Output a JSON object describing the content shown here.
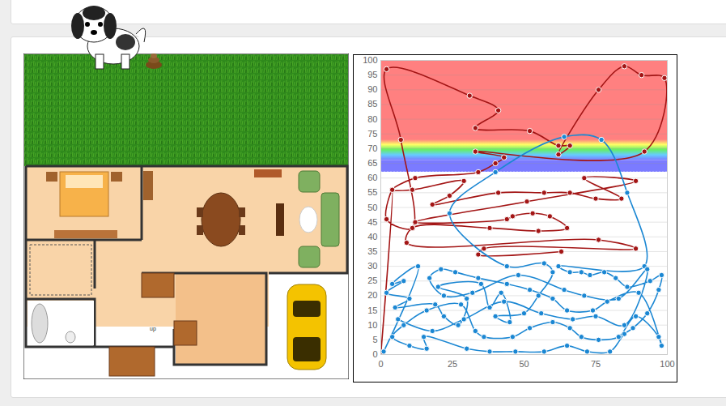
{
  "chart_data": {
    "type": "line",
    "marker": "circle",
    "grid": true,
    "xlim": [
      0,
      100
    ],
    "xticks": [
      0,
      25,
      50,
      75,
      100
    ],
    "ylim": [
      0,
      100
    ],
    "yticks": [
      0,
      5,
      10,
      15,
      20,
      25,
      30,
      35,
      40,
      45,
      50,
      55,
      60,
      65,
      70,
      75,
      80,
      85,
      90,
      95,
      100
    ],
    "bands": [
      {
        "from": 73,
        "to": 100,
        "color": "#ff8080"
      },
      {
        "from": 66,
        "to": 73,
        "colors": [
          "#ff8080",
          "#ffff66",
          "#66ee66",
          "#66ccff",
          "#7b7bff"
        ]
      },
      {
        "from": 62,
        "to": 66,
        "color": "#7b7bff"
      }
    ],
    "series": [
      {
        "color": "#a31515",
        "x": [
          0,
          4,
          2,
          11,
          7,
          2,
          31,
          41,
          33,
          52,
          62,
          66,
          62,
          76,
          85,
          91,
          99,
          92,
          33,
          43,
          40,
          34,
          12,
          4,
          11,
          29,
          24,
          18,
          41,
          57,
          66,
          75,
          84,
          71,
          89,
          51,
          12,
          44,
          46,
          53,
          59,
          65,
          55,
          38,
          11,
          9,
          76,
          89,
          36,
          34,
          63
        ],
        "values": [
          0,
          56,
          46,
          43,
          73,
          97,
          88,
          83,
          77,
          76,
          71,
          71,
          68,
          90,
          98,
          95,
          94,
          69,
          69,
          67,
          65,
          62,
          60,
          56,
          56,
          59,
          54,
          51,
          55,
          55,
          55,
          53,
          53,
          60,
          59,
          52,
          45,
          46,
          47,
          48,
          47,
          43,
          42,
          43,
          43,
          38,
          39,
          36,
          36,
          34,
          35
        ]
      },
      {
        "color": "#1b87d3",
        "x": [
          1,
          13,
          4,
          8,
          2,
          10,
          5,
          19,
          22,
          27,
          30,
          20,
          35,
          38,
          42,
          45,
          40,
          50,
          55,
          60,
          57,
          44,
          24,
          40,
          64,
          77,
          86,
          92,
          62,
          66,
          70,
          73,
          78,
          82,
          86,
          94,
          98,
          97,
          93,
          88,
          85,
          80,
          72,
          65,
          57,
          47,
          38,
          30,
          15,
          16,
          10,
          4,
          8,
          16,
          28,
          33,
          36,
          46,
          52,
          60,
          66,
          70,
          76,
          83,
          89,
          97,
          98,
          90,
          79,
          74,
          65,
          60,
          52,
          44,
          34,
          26,
          21,
          17,
          22,
          32,
          48,
          64,
          71,
          83,
          93,
          85,
          75,
          67,
          56,
          43,
          29,
          18,
          6
        ],
        "values": [
          1,
          30,
          24,
          25,
          21,
          19,
          16,
          17,
          13,
          10,
          19,
          23,
          24,
          16,
          21,
          11,
          13,
          14,
          20,
          28,
          31,
          30,
          48,
          62,
          74,
          73,
          55,
          30,
          30,
          28,
          28,
          27,
          28,
          26,
          23,
          25,
          27,
          22,
          14,
          9,
          7,
          1,
          1,
          3,
          1,
          1,
          1,
          2,
          6,
          2,
          3,
          6,
          10,
          15,
          17,
          8,
          6,
          6,
          9,
          11,
          9,
          6,
          5,
          6,
          13,
          6,
          3,
          21,
          18,
          15,
          15,
          19,
          22,
          24,
          26,
          28,
          29,
          26,
          20,
          21,
          27,
          22,
          20,
          19,
          29,
          10,
          13,
          12,
          14,
          18,
          12,
          8,
          12
        ]
      }
    ]
  },
  "floor_plan": {
    "stairs_label": "up"
  }
}
